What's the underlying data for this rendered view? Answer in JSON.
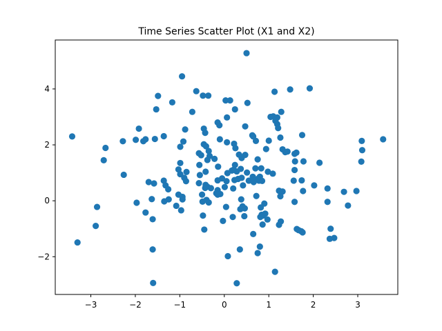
{
  "chart_data": {
    "type": "scatter",
    "title": "Time Series Scatter Plot (X1 and X2)",
    "xlabel": "",
    "ylabel": "",
    "xlim": [
      -3.8,
      3.9
    ],
    "ylim": [
      -3.35,
      5.75
    ],
    "xticks": [
      -3,
      -2,
      -1,
      0,
      1,
      2,
      3
    ],
    "yticks": [
      -2,
      0,
      2,
      4
    ],
    "xtick_labels": [
      "−3",
      "−2",
      "−1",
      "0",
      "1",
      "2",
      "3"
    ],
    "ytick_labels": [
      "−2",
      "0",
      "2",
      "4"
    ],
    "grid": false,
    "marker_color": "#1f77b4",
    "points": [
      [
        0.5,
        5.28
      ],
      [
        -0.95,
        4.45
      ],
      [
        1.92,
        4.02
      ],
      [
        1.48,
        3.98
      ],
      [
        -0.63,
        3.92
      ],
      [
        1.13,
        3.9
      ],
      [
        -0.48,
        3.76
      ],
      [
        -0.36,
        3.76
      ],
      [
        -1.49,
        3.75
      ],
      [
        0.13,
        3.59
      ],
      [
        0.03,
        3.59
      ],
      [
        -1.17,
        3.52
      ],
      [
        0.52,
        3.5
      ],
      [
        -1.53,
        3.27
      ],
      [
        0.24,
        3.27
      ],
      [
        -0.72,
        3.18
      ],
      [
        1.28,
        3.18
      ],
      [
        1.04,
        3.0
      ],
      [
        1.1,
        3.02
      ],
      [
        0.06,
        2.98
      ],
      [
        1.19,
        2.98
      ],
      [
        1.15,
        2.86
      ],
      [
        -0.15,
        2.8
      ],
      [
        1.19,
        2.74
      ],
      [
        -0.11,
        2.7
      ],
      [
        -0.46,
        2.58
      ],
      [
        0.47,
        2.66
      ],
      [
        -1.92,
        2.58
      ],
      [
        -0.88,
        2.55
      ],
      [
        1.21,
        2.6
      ],
      [
        -0.43,
        2.43
      ],
      [
        -3.42,
        2.3
      ],
      [
        -1.36,
        2.31
      ],
      [
        0.63,
        2.34
      ],
      [
        0.65,
        2.3
      ],
      [
        1.75,
        2.35
      ],
      [
        1.26,
        2.26
      ],
      [
        -0.1,
        2.2
      ],
      [
        3.57,
        2.2
      ],
      [
        -1.56,
        2.21
      ],
      [
        -1.77,
        2.2
      ],
      [
        -1.99,
        2.18
      ],
      [
        -1.82,
        2.13
      ],
      [
        -2.28,
        2.13
      ],
      [
        0.71,
        2.14
      ],
      [
        1.0,
        2.15
      ],
      [
        3.09,
        2.14
      ],
      [
        -0.92,
        2.12
      ],
      [
        0.06,
        2.09
      ],
      [
        -0.46,
        2.02
      ],
      [
        0.22,
        2.04
      ],
      [
        -0.41,
        1.95
      ],
      [
        -0.99,
        1.93
      ],
      [
        -2.67,
        1.89
      ],
      [
        0.25,
        1.88
      ],
      [
        0.94,
        1.85
      ],
      [
        1.31,
        1.84
      ],
      [
        3.1,
        1.81
      ],
      [
        -0.35,
        1.78
      ],
      [
        1.42,
        1.76
      ],
      [
        1.37,
        1.74
      ],
      [
        -0.57,
        1.7
      ],
      [
        1.62,
        1.72
      ],
      [
        1.58,
        1.68
      ],
      [
        0.33,
        1.65
      ],
      [
        0.47,
        1.64
      ],
      [
        -0.52,
        1.63
      ],
      [
        -0.33,
        1.6
      ],
      [
        0.39,
        1.53
      ],
      [
        -0.22,
        1.5
      ],
      [
        0.75,
        1.48
      ],
      [
        -0.38,
        1.46
      ],
      [
        -2.71,
        1.45
      ],
      [
        1.59,
        1.41
      ],
      [
        3.08,
        1.4
      ],
      [
        1.78,
        1.41
      ],
      [
        2.14,
        1.36
      ],
      [
        -0.99,
        1.35
      ],
      [
        -0.56,
        1.28
      ],
      [
        0.24,
        1.28
      ],
      [
        -0.14,
        1.22
      ],
      [
        0.7,
        1.16
      ],
      [
        0.83,
        1.16
      ],
      [
        0.37,
        1.14
      ],
      [
        0.21,
        1.11
      ],
      [
        0.28,
        1.05
      ],
      [
        -1.03,
        1.12
      ],
      [
        1.58,
        1.1
      ],
      [
        0.17,
        1.08
      ],
      [
        0.98,
        1.04
      ],
      [
        1.09,
        0.97
      ],
      [
        -0.42,
        1.04
      ],
      [
        -0.85,
        1.03
      ],
      [
        0.51,
        1.01
      ],
      [
        -0.99,
        0.95
      ],
      [
        0.07,
        0.99
      ],
      [
        -2.26,
        0.93
      ],
      [
        0.64,
        0.86
      ],
      [
        -0.55,
        0.92
      ],
      [
        0.8,
        0.86
      ],
      [
        -0.05,
        0.8
      ],
      [
        0.39,
        0.82
      ],
      [
        0.31,
        0.78
      ],
      [
        -0.9,
        0.82
      ],
      [
        0.75,
        0.78
      ],
      [
        0.78,
        0.72
      ],
      [
        -0.15,
        0.73
      ],
      [
        0.23,
        0.74
      ],
      [
        0.55,
        0.72
      ],
      [
        0.85,
        0.71
      ],
      [
        1.56,
        0.72
      ],
      [
        -1.36,
        0.72
      ],
      [
        -0.86,
        0.7
      ],
      [
        1.74,
        0.73
      ],
      [
        0.66,
        0.67
      ],
      [
        0.05,
        0.7
      ],
      [
        -1.7,
        0.67
      ],
      [
        -1.58,
        0.62
      ],
      [
        -0.57,
        0.63
      ],
      [
        -0.42,
        0.57
      ],
      [
        -1.32,
        0.55
      ],
      [
        2.02,
        0.55
      ],
      [
        0.42,
        0.55
      ],
      [
        -0.38,
        0.5
      ],
      [
        2.32,
        0.44
      ],
      [
        0.01,
        0.49
      ],
      [
        -1.26,
        0.41
      ],
      [
        -0.43,
        0.46
      ],
      [
        -0.3,
        0.45
      ],
      [
        0.2,
        0.44
      ],
      [
        -0.15,
        0.38
      ],
      [
        1.23,
        0.36
      ],
      [
        1.77,
        0.35
      ],
      [
        1.31,
        0.33
      ],
      [
        2.69,
        0.32
      ],
      [
        2.97,
        0.35
      ],
      [
        -0.18,
        0.27
      ],
      [
        -0.09,
        0.24
      ],
      [
        -0.5,
        0.22
      ],
      [
        -1.03,
        0.22
      ],
      [
        -0.94,
        0.14
      ],
      [
        -0.15,
        0.22
      ],
      [
        1.26,
        0.16
      ],
      [
        0.72,
        0.17
      ],
      [
        -1.63,
        0.06
      ],
      [
        -1.25,
        0.05
      ],
      [
        -0.94,
        0.05
      ],
      [
        0.38,
        0.05
      ],
      [
        -0.4,
        0.03
      ],
      [
        -1.35,
        -0.02
      ],
      [
        1.58,
        -0.04
      ],
      [
        2.32,
        -0.04
      ],
      [
        -1.97,
        -0.07
      ],
      [
        -0.49,
        -0.03
      ],
      [
        -0.35,
        -0.06
      ],
      [
        0.9,
        -0.1
      ],
      [
        0.41,
        -0.2
      ],
      [
        -1.08,
        -0.18
      ],
      [
        2.78,
        -0.17
      ],
      [
        0.04,
        -0.22
      ],
      [
        -2.86,
        -0.22
      ],
      [
        0.82,
        -0.24
      ],
      [
        0.36,
        -0.3
      ],
      [
        0.46,
        -0.27
      ],
      [
        -1.77,
        -0.42
      ],
      [
        0.92,
        -0.46
      ],
      [
        0.87,
        -0.53
      ],
      [
        -0.97,
        -0.34
      ],
      [
        0.84,
        -0.5
      ],
      [
        -0.48,
        -0.53
      ],
      [
        0.19,
        -0.58
      ],
      [
        0.45,
        -0.55
      ],
      [
        0.81,
        -0.58
      ],
      [
        -1.61,
        -0.66
      ],
      [
        0.97,
        -0.67
      ],
      [
        -0.03,
        -0.72
      ],
      [
        1.27,
        -0.74
      ],
      [
        1.23,
        -0.86
      ],
      [
        0.86,
        -0.85
      ],
      [
        -2.89,
        -0.9
      ],
      [
        1.63,
        -1.01
      ],
      [
        2.39,
        -1.0
      ],
      [
        1.67,
        -1.05
      ],
      [
        1.73,
        -1.09
      ],
      [
        -0.45,
        -1.03
      ],
      [
        1.76,
        -1.13
      ],
      [
        0.65,
        -1.19
      ],
      [
        2.37,
        -1.36
      ],
      [
        2.47,
        -1.33
      ],
      [
        -3.3,
        -1.49
      ],
      [
        0.8,
        -1.64
      ],
      [
        0.35,
        -1.74
      ],
      [
        -1.61,
        -1.74
      ],
      [
        0.75,
        -1.87
      ],
      [
        0.08,
        -1.98
      ],
      [
        1.14,
        -2.54
      ],
      [
        -1.6,
        -2.94
      ],
      [
        0.28,
        -2.95
      ]
    ]
  }
}
